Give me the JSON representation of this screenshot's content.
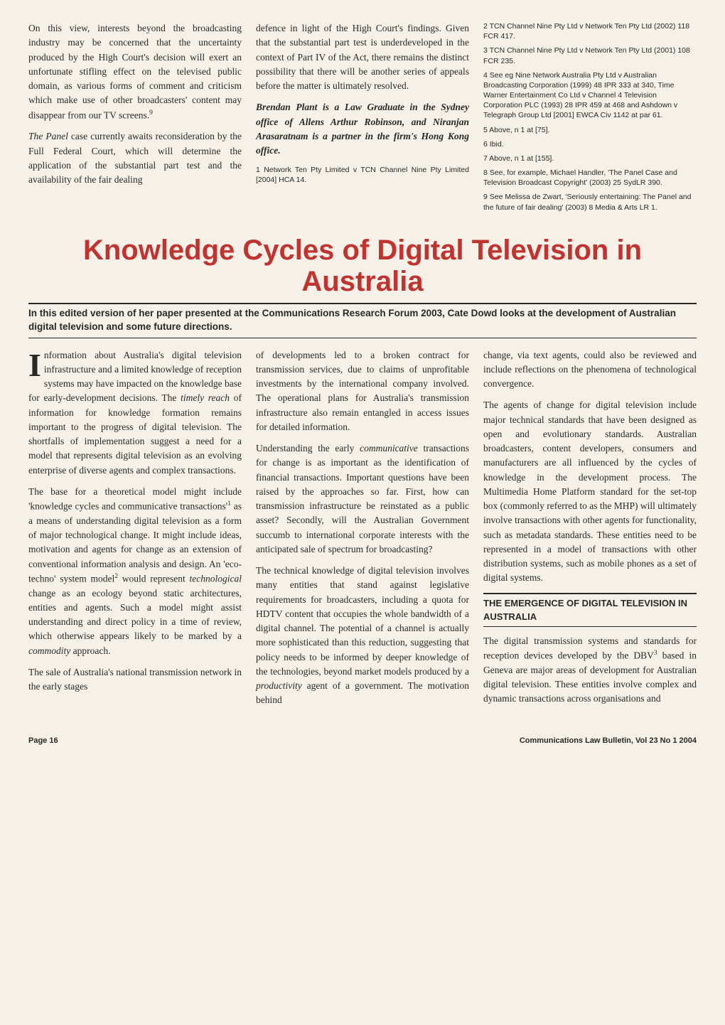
{
  "top": {
    "col1": {
      "p1_a": "On this view, interests beyond the broadcasting industry may be concerned that the uncertainty produced by the High Court's decision will exert an unfortunate stifling effect on the televised public domain, as various forms of comment and criticism which make use of other broadcasters' content may disappear from our TV screens.",
      "p1_sup": "9",
      "p2_italic": "The Panel",
      "p2_rest": " case currently awaits reconsideration by the Full Federal Court, which will determine the application of the substantial part test and the availability of the fair dealing"
    },
    "col2": {
      "p1": "defence in light of the High Court's findings. Given that the substantial part test is underdeveloped in the context of Part IV of the Act, there remains the distinct possibility that there will be another series of appeals before the matter is ultimately resolved.",
      "p2": "Brendan Plant is a Law Graduate in the Sydney office of Allens Arthur Robinson, and Niranjan Arasaratnam is a partner in the firm's Hong Kong office.",
      "p3": "1 Network Ten Pty Limited v TCN Channel Nine Pty Limited [2004] HCA 14."
    },
    "col3": {
      "notes": [
        "2 TCN Channel Nine Pty Ltd v Network Ten Pty Ltd (2002) 118 FCR 417.",
        "3 TCN Channel Nine Pty Ltd v Network Ten Pty Ltd (2001) 108 FCR 235.",
        "4 See eg Nine Network Australia Pty Ltd v Australian Broadcasting Corporation (1999) 48 IPR 333 at 340, Time Warner Entertainment Co Ltd v Channel 4 Television Corporation PLC (1993) 28 IPR 459 at 468 and Ashdown v Telegraph Group Ltd [2001] EWCA Civ 1142 at par 61.",
        "5 Above, n 1 at [75].",
        "6 Ibid.",
        "7 Above, n 1 at [155].",
        "8 See, for example, Michael Handler, 'The Panel Case and Television Broadcast Copyright' (2003) 25 SydLR 390.",
        "9 See Melissa de Zwart, 'Seriously entertaining: The Panel and the future of fair dealing' (2003) 8 Media & Arts LR 1."
      ]
    }
  },
  "headline": "Knowledge Cycles of Digital Television in Australia",
  "deck": "In this edited version of her paper presented at the Communications Research Forum 2003, Cate Dowd looks at the development of Australian digital television and some future directions.",
  "main": {
    "col1": {
      "p1_drop": "I",
      "p1_rest": "nformation about Australia's digital television infrastructure and a limited knowledge of reception systems may have impacted on the knowledge base for early-development decisions. The ",
      "p1_italic1": "timely reach",
      "p1_after1": " of information for knowledge formation remains important to the progress of digital television. The shortfalls of implementation suggest a need for a model that represents digital television as an evolving enterprise of diverse agents and complex transactions.",
      "p2_a": "The base for a theoretical model might include 'knowledge cycles and communicative transactions'",
      "p2_sup": "1",
      "p2_b": " as a means of understanding digital television as a form of major technological change. It might include ideas, motivation and agents for change as an extension of conventional information analysis and design. An 'eco-techno' system model",
      "p2_sup2": "2",
      "p2_c": " would represent ",
      "p2_italic": "technological",
      "p2_d": " change as an ecology beyond static architectures, entities and agents. Such a model might assist understanding and direct policy in a time of review, which otherwise appears likely to be marked by a ",
      "p2_italic2": "commodity",
      "p2_e": " approach.",
      "p3": "The sale of Australia's national transmission network in the early stages"
    },
    "col2": {
      "p1": "of developments led to a broken contract for transmission services, due to claims of unprofitable investments by the international company involved. The operational plans for Australia's transmission infrastructure also remain entangled in access issues for detailed information.",
      "p2_a": "Understanding the early ",
      "p2_italic": "communicative",
      "p2_b": " transactions for change is as important as the identification of financial transactions. Important questions have been raised by the approaches so far. First, how can transmission infrastructure be reinstated as a public asset? Secondly, will the Australian Government succumb to international corporate interests with the anticipated sale of spectrum for broadcasting?",
      "p3_a": "The technical knowledge of digital television involves many entities that stand against legislative requirements for broadcasters, including a quota for HDTV content that occupies the whole bandwidth of a digital channel. The potential of a channel is actually more sophisticated than this reduction, suggesting that policy needs to be informed by deeper knowledge of the technologies, beyond market models produced by a ",
      "p3_italic": "productivity",
      "p3_b": " agent of a government. The motivation behind"
    },
    "col3": {
      "p1": "change, via text agents, could also be reviewed and include reflections on the phenomena of technological convergence.",
      "p2": "The agents of change for digital television include major technical standards that have been designed as open and evolutionary standards. Australian broadcasters, content developers, consumers and manufacturers are all influenced by the cycles of knowledge in the development process. The Multimedia Home Platform standard for the set-top box (commonly referred to as the MHP) will ultimately involve transactions with other agents for functionality, such as metadata standards. These entities need to be represented in a model of transactions with other distribution systems, such as mobile phones as a set of digital systems.",
      "sectionHead": "THE EMERGENCE OF DIGITAL TELEVISION IN AUSTRALIA",
      "p3_a": "The digital transmission systems and standards for reception devices developed by the DBV",
      "p3_sup": "3",
      "p3_b": " based in Geneva are major areas of development for Australian digital television. These entities involve complex and dynamic transactions across organisations and"
    }
  },
  "footer": {
    "left": "Page 16",
    "right": "Communications Law Bulletin, Vol 23 No 1 2004"
  },
  "colors": {
    "headline": "#c1332f",
    "background": "#f5f1e8",
    "text": "#2a2825"
  }
}
